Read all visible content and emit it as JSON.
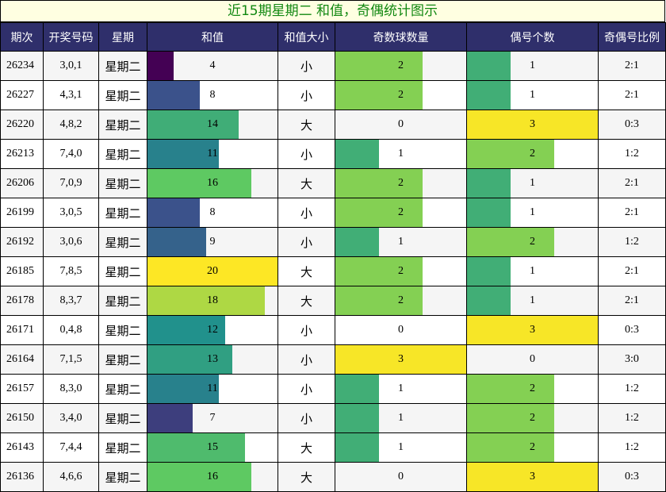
{
  "title": "近15期星期二 和值，奇偶统计图示",
  "headers": [
    "期次",
    "开奖号码",
    "星期",
    "和值",
    "和值大小",
    "奇数球数量",
    "偶号个数",
    "奇偶号比例"
  ],
  "scales": {
    "sum_max": 20,
    "odd_max": 3,
    "even_max": 3
  },
  "rows": [
    {
      "issue": "26234",
      "numbers": "3,0,1",
      "weekday": "星期二",
      "sum": "4",
      "size": "小",
      "odd": "2",
      "even": "1",
      "ratio": "2:1"
    },
    {
      "issue": "26227",
      "numbers": "4,3,1",
      "weekday": "星期二",
      "sum": "8",
      "size": "小",
      "odd": "2",
      "even": "1",
      "ratio": "2:1"
    },
    {
      "issue": "26220",
      "numbers": "4,8,2",
      "weekday": "星期二",
      "sum": "14",
      "size": "大",
      "odd": "0",
      "even": "3",
      "ratio": "0:3"
    },
    {
      "issue": "26213",
      "numbers": "7,4,0",
      "weekday": "星期二",
      "sum": "11",
      "size": "小",
      "odd": "1",
      "even": "2",
      "ratio": "1:2"
    },
    {
      "issue": "26206",
      "numbers": "7,0,9",
      "weekday": "星期二",
      "sum": "16",
      "size": "大",
      "odd": "2",
      "even": "1",
      "ratio": "2:1"
    },
    {
      "issue": "26199",
      "numbers": "3,0,5",
      "weekday": "星期二",
      "sum": "8",
      "size": "小",
      "odd": "2",
      "even": "1",
      "ratio": "2:1"
    },
    {
      "issue": "26192",
      "numbers": "3,0,6",
      "weekday": "星期二",
      "sum": "9",
      "size": "小",
      "odd": "1",
      "even": "2",
      "ratio": "1:2"
    },
    {
      "issue": "26185",
      "numbers": "7,8,5",
      "weekday": "星期二",
      "sum": "20",
      "size": "大",
      "odd": "2",
      "even": "1",
      "ratio": "2:1"
    },
    {
      "issue": "26178",
      "numbers": "8,3,7",
      "weekday": "星期二",
      "sum": "18",
      "size": "大",
      "odd": "2",
      "even": "1",
      "ratio": "2:1"
    },
    {
      "issue": "26171",
      "numbers": "0,4,8",
      "weekday": "星期二",
      "sum": "12",
      "size": "小",
      "odd": "0",
      "even": "3",
      "ratio": "0:3"
    },
    {
      "issue": "26164",
      "numbers": "7,1,5",
      "weekday": "星期二",
      "sum": "13",
      "size": "小",
      "odd": "3",
      "even": "0",
      "ratio": "3:0"
    },
    {
      "issue": "26157",
      "numbers": "8,3,0",
      "weekday": "星期二",
      "sum": "11",
      "size": "小",
      "odd": "1",
      "even": "2",
      "ratio": "1:2"
    },
    {
      "issue": "26150",
      "numbers": "3,4,0",
      "weekday": "星期二",
      "sum": "7",
      "size": "小",
      "odd": "1",
      "even": "2",
      "ratio": "1:2"
    },
    {
      "issue": "26143",
      "numbers": "7,4,4",
      "weekday": "星期二",
      "sum": "15",
      "size": "大",
      "odd": "1",
      "even": "2",
      "ratio": "1:2"
    },
    {
      "issue": "26136",
      "numbers": "4,6,6",
      "weekday": "星期二",
      "sum": "16",
      "size": "大",
      "odd": "0",
      "even": "3",
      "ratio": "0:3"
    }
  ]
}
